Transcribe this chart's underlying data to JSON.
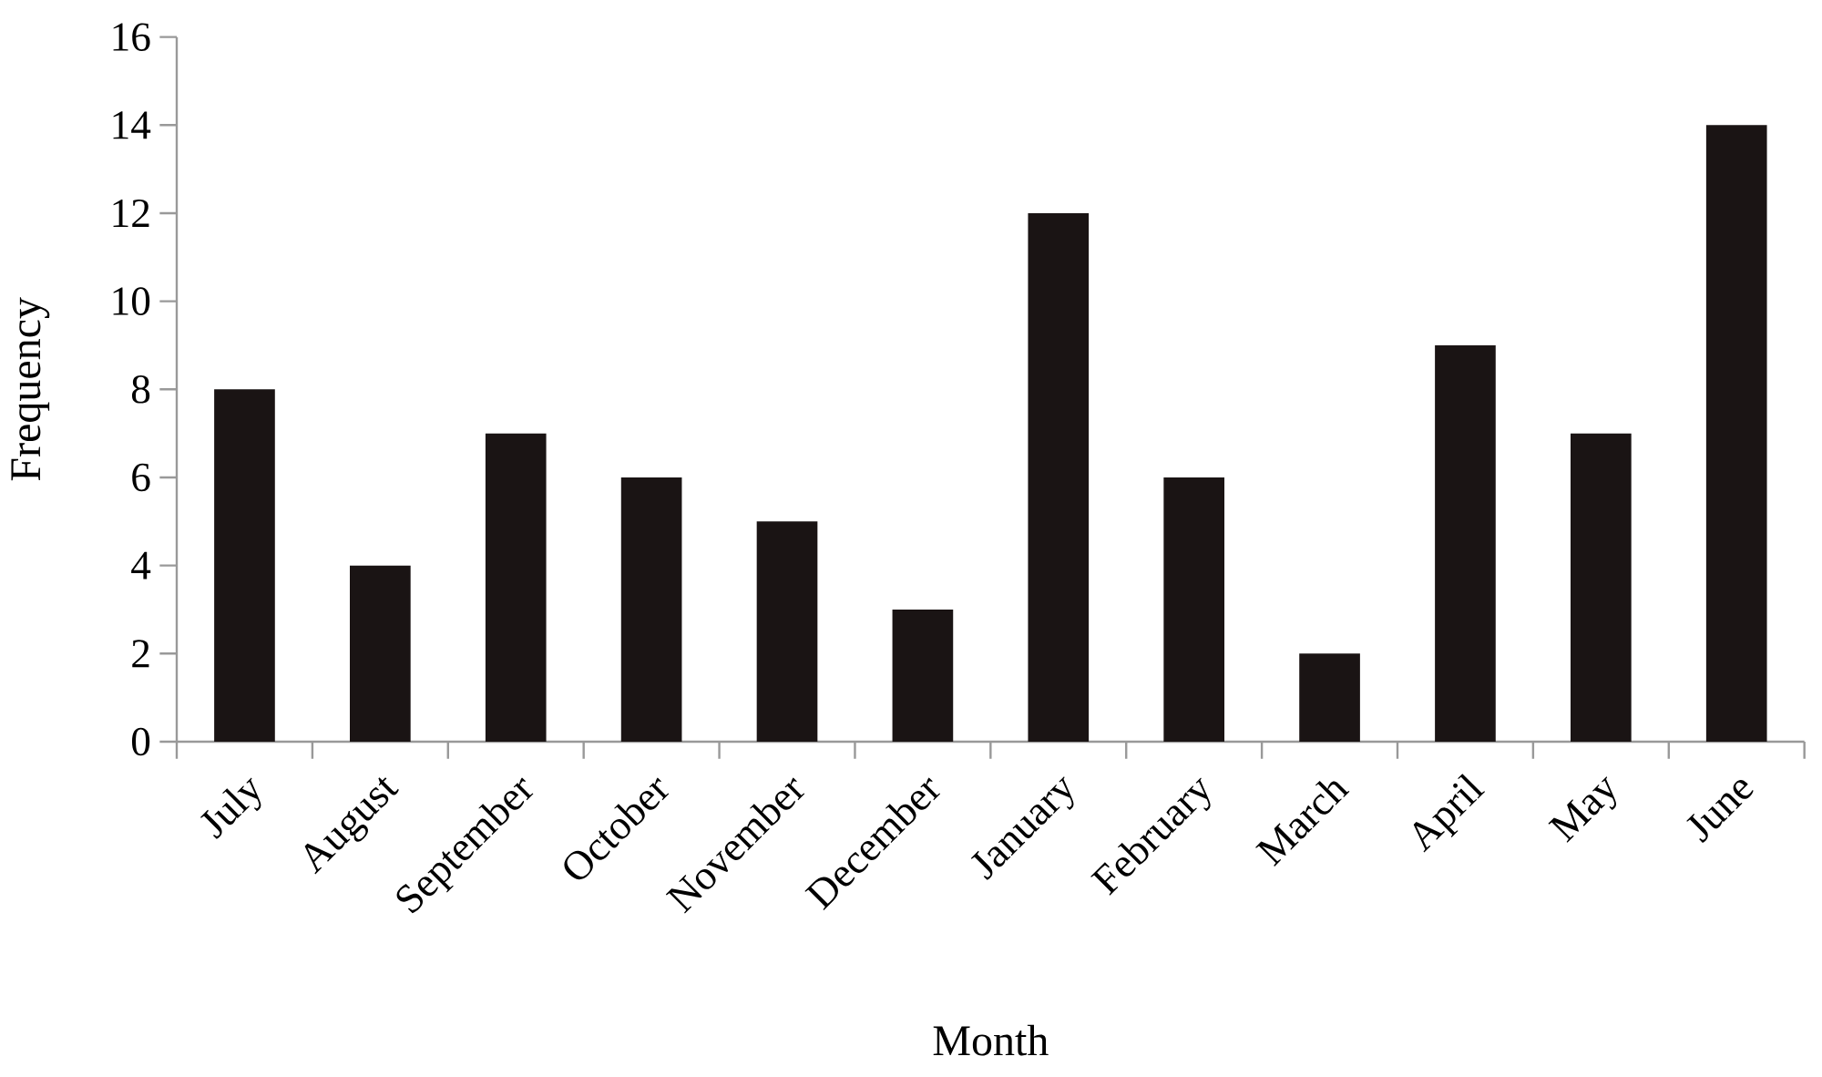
{
  "chart_data": {
    "type": "bar",
    "xlabel": "Month",
    "ylabel": "Frequency",
    "categories": [
      "July",
      "August",
      "September",
      "October",
      "November",
      "December",
      "January",
      "February",
      "March",
      "April",
      "May",
      "June"
    ],
    "values": [
      8,
      4,
      7,
      6,
      5,
      3,
      12,
      6,
      2,
      9,
      7,
      14
    ],
    "color": "#1a1414",
    "ylim": [
      0,
      16
    ],
    "yticks": [
      0,
      2,
      4,
      6,
      8,
      10,
      12,
      14,
      16
    ],
    "grid": false
  }
}
